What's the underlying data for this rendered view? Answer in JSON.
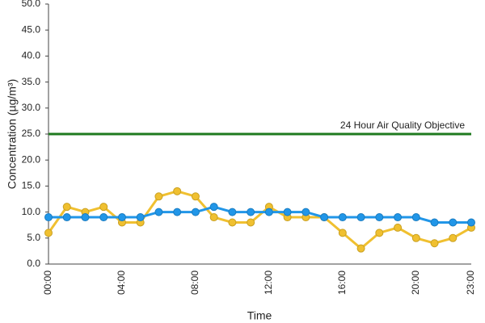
{
  "chart_data": {
    "type": "line",
    "y_label": "Concentration (µg/m³)",
    "x_label": "Time",
    "categories": [
      "00:00",
      null,
      null,
      null,
      "04:00",
      null,
      null,
      null,
      "08:00",
      null,
      null,
      null,
      "12:00",
      null,
      null,
      null,
      "16:00",
      null,
      null,
      null,
      "20:00",
      null,
      null,
      "23:00"
    ],
    "series": [
      {
        "color": "#f0c030",
        "values": [
          6,
          11,
          10,
          11,
          8,
          8,
          13,
          14,
          13,
          9,
          8,
          8,
          11,
          9,
          9,
          9,
          6,
          3,
          6,
          7,
          5,
          4,
          5,
          7
        ]
      },
      {
        "color": "#2196e8",
        "values": [
          9,
          9,
          9,
          9,
          9,
          9,
          10,
          10,
          10,
          11,
          10,
          10,
          10,
          10,
          10,
          9,
          9,
          9,
          9,
          9,
          9,
          8,
          8,
          8
        ]
      }
    ],
    "reference_lines": [
      {
        "value": 25,
        "label": "24 Hour Air Quality Objective",
        "color": "#1f7a1f"
      }
    ],
    "ylim": [
      0,
      50
    ],
    "yticks": [
      {
        "value": 0,
        "label": "0.0"
      },
      {
        "value": 5,
        "label": "5.0"
      },
      {
        "value": 10,
        "label": "10.0"
      },
      {
        "value": 15,
        "label": "15.0"
      },
      {
        "value": 20,
        "label": "20.0"
      },
      {
        "value": 25,
        "label": "25.0"
      },
      {
        "value": 30,
        "label": "30.0"
      },
      {
        "value": 35,
        "label": "35.0"
      },
      {
        "value": 40,
        "label": "40.0"
      },
      {
        "value": 45,
        "label": "45.0"
      },
      {
        "value": 50,
        "label": "50.0"
      }
    ],
    "grid": false
  }
}
